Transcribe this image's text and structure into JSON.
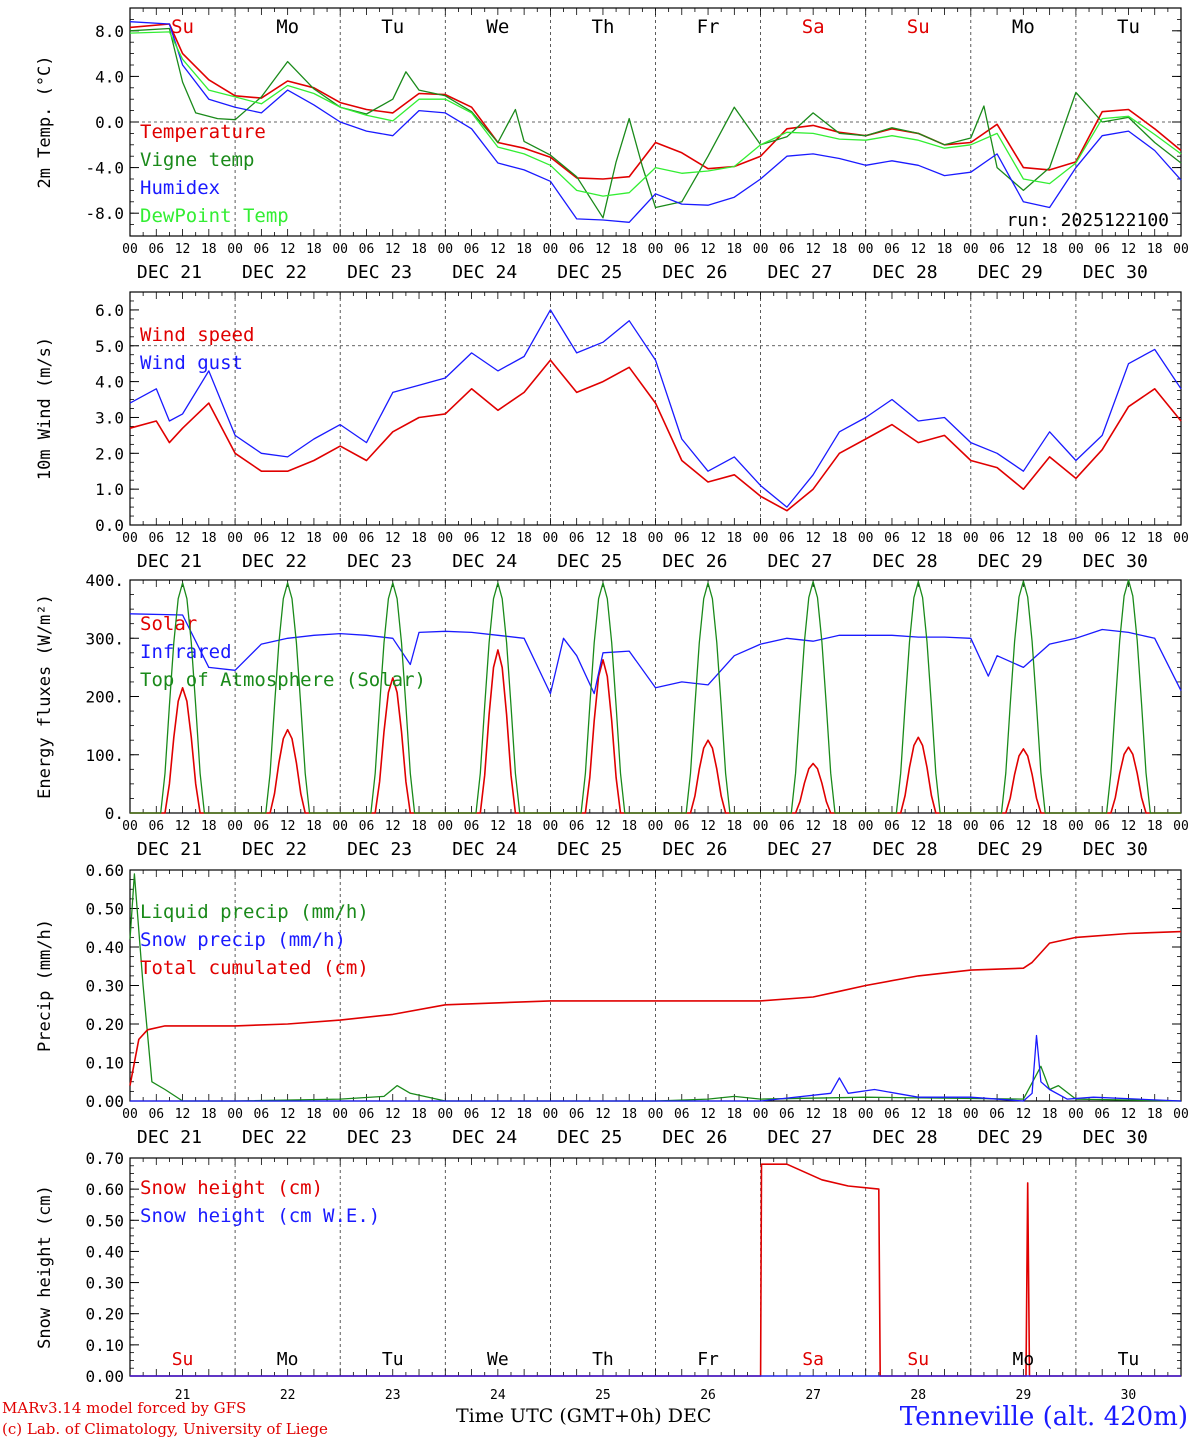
{
  "run_label": "run: 2025122100",
  "weekday_labels": [
    "Su",
    "Mo",
    "Tu",
    "We",
    "Th",
    "Fr",
    "Sa",
    "Su",
    "Mo",
    "Tu"
  ],
  "weekend_flags": [
    true,
    false,
    false,
    false,
    false,
    false,
    true,
    true,
    false,
    false
  ],
  "date_labels": [
    "DEC 21",
    "DEC 22",
    "DEC 23",
    "DEC 24",
    "DEC 25",
    "DEC 26",
    "DEC 27",
    "DEC 28",
    "DEC 29",
    "DEC 30"
  ],
  "hour_ticks": [
    "00",
    "06",
    "12",
    "18"
  ],
  "final_hour_tick": "00",
  "day_numbers": [
    "21",
    "22",
    "23",
    "24",
    "25",
    "26",
    "27",
    "28",
    "29",
    "30"
  ],
  "footer": {
    "model": "MARv3.14 model forced by GFS",
    "lab": "(c) Lab. of Climatology, University of Liege",
    "time_axis": "Time UTC (GMT+0h) DEC",
    "station": "Tenneville (alt. 420m)"
  },
  "colors": {
    "red": "#e00000",
    "green": "#1a8a1a",
    "blue": "#1a1aff",
    "lightgreen": "#33ee33",
    "black": "#000000"
  },
  "chart_data": [
    {
      "type": "line",
      "ylabel": "2m Temp. (°C)",
      "ylim": [
        -10,
        10
      ],
      "yticks": [
        -8,
        -4,
        0,
        4,
        8
      ],
      "ytick_labels": [
        "-8.0",
        "-4.0",
        "0.0",
        "4.0",
        "8.0"
      ],
      "reference_line": 0,
      "x_unit": "hours since DEC 21 00 UTC",
      "series": [
        {
          "name": "Temperature",
          "color": "red",
          "x": [
            0,
            9,
            12,
            18,
            24,
            30,
            36,
            42,
            48,
            54,
            60,
            66,
            72,
            78,
            84,
            90,
            96,
            102,
            108,
            114,
            120,
            126,
            132,
            138,
            144,
            150,
            156,
            162,
            168,
            174,
            180,
            186,
            192,
            198,
            204,
            210,
            216,
            222,
            228,
            234,
            240
          ],
          "values": [
            8.3,
            8.6,
            6.0,
            3.7,
            2.3,
            2.1,
            3.6,
            3.0,
            1.7,
            1.1,
            0.8,
            2.5,
            2.4,
            1.3,
            -1.8,
            -2.3,
            -3.1,
            -4.9,
            -5.0,
            -4.8,
            -1.8,
            -2.7,
            -4.1,
            -3.9,
            -3.0,
            -0.6,
            -0.3,
            -0.9,
            -1.2,
            -0.6,
            -1.0,
            -2.0,
            -1.8,
            -0.2,
            -4.0,
            -4.2,
            -3.5,
            0.9,
            1.1,
            -0.6,
            -2.5
          ]
        },
        {
          "name": "Vigne temp",
          "color": "green",
          "x": [
            0,
            9,
            12,
            15,
            20,
            24,
            30,
            36,
            42,
            48,
            54,
            60,
            63,
            66,
            72,
            78,
            84,
            88,
            90,
            96,
            102,
            108,
            111,
            114,
            117,
            120,
            126,
            132,
            138,
            144,
            150,
            156,
            162,
            168,
            174,
            180,
            186,
            192,
            195,
            198,
            204,
            210,
            216,
            222,
            228,
            234,
            240
          ],
          "values": [
            8.0,
            8.2,
            3.5,
            0.8,
            0.3,
            0.2,
            2.2,
            5.3,
            2.9,
            1.3,
            0.7,
            2.0,
            4.4,
            2.8,
            2.3,
            0.9,
            -1.8,
            1.1,
            -1.7,
            -2.9,
            -4.8,
            -8.4,
            -3.5,
            0.3,
            -3.9,
            -7.5,
            -7.0,
            -3.0,
            1.3,
            -2.0,
            -1.3,
            0.8,
            -1.0,
            -1.2,
            -0.5,
            -1.0,
            -2.0,
            -1.4,
            1.4,
            -4.0,
            -6.0,
            -4.0,
            2.6,
            0.0,
            0.4,
            -1.8,
            -3.6
          ]
        },
        {
          "name": "Humidex",
          "color": "blue",
          "x": [
            0,
            9,
            12,
            18,
            24,
            30,
            36,
            42,
            48,
            54,
            60,
            66,
            72,
            78,
            84,
            90,
            96,
            102,
            108,
            114,
            120,
            126,
            132,
            138,
            144,
            150,
            156,
            162,
            168,
            174,
            180,
            186,
            192,
            198,
            204,
            210,
            216,
            222,
            228,
            234,
            240
          ],
          "values": [
            8.8,
            8.6,
            5.0,
            2.0,
            1.3,
            0.8,
            2.8,
            1.5,
            0.0,
            -0.8,
            -1.2,
            1.0,
            0.8,
            -0.6,
            -3.6,
            -4.2,
            -5.2,
            -8.5,
            -8.6,
            -8.8,
            -6.3,
            -7.2,
            -7.3,
            -6.6,
            -5.0,
            -3.0,
            -2.8,
            -3.2,
            -3.8,
            -3.4,
            -3.8,
            -4.7,
            -4.4,
            -2.8,
            -7.0,
            -7.5,
            -4.0,
            -1.2,
            -0.8,
            -2.5,
            -5.1
          ]
        },
        {
          "name": "DewPoint Temp",
          "color": "lightgreen",
          "x": [
            0,
            9,
            12,
            18,
            24,
            30,
            36,
            42,
            48,
            54,
            60,
            66,
            72,
            78,
            84,
            90,
            96,
            102,
            108,
            114,
            120,
            126,
            132,
            138,
            144,
            150,
            156,
            162,
            168,
            174,
            180,
            186,
            192,
            198,
            204,
            210,
            216,
            222,
            228,
            234,
            240
          ],
          "values": [
            7.8,
            7.9,
            5.5,
            2.8,
            2.2,
            1.6,
            3.2,
            2.5,
            1.3,
            0.6,
            0.1,
            2.0,
            2.0,
            0.8,
            -2.2,
            -2.8,
            -3.8,
            -6.0,
            -6.5,
            -6.2,
            -4.0,
            -4.5,
            -4.3,
            -3.9,
            -2.0,
            -0.9,
            -1.0,
            -1.5,
            -1.6,
            -1.2,
            -1.6,
            -2.3,
            -2.0,
            -1.0,
            -5.0,
            -5.4,
            -3.6,
            0.3,
            0.5,
            -1.1,
            -2.8
          ]
        }
      ]
    },
    {
      "type": "line",
      "ylabel": "10m Wind (m/s)",
      "ylim": [
        0,
        6.5
      ],
      "yticks": [
        0,
        1,
        2,
        3,
        4,
        5,
        6
      ],
      "ytick_labels": [
        "0.0",
        "1.0",
        "2.0",
        "3.0",
        "4.0",
        "5.0",
        "6.0"
      ],
      "reference_line": 5,
      "x_unit": "hours since DEC 21 00 UTC",
      "series": [
        {
          "name": "Wind speed",
          "color": "red",
          "x": [
            0,
            6,
            9,
            12,
            18,
            24,
            30,
            36,
            42,
            48,
            54,
            60,
            66,
            72,
            78,
            84,
            90,
            96,
            102,
            108,
            114,
            120,
            126,
            132,
            138,
            144,
            150,
            156,
            162,
            168,
            174,
            180,
            186,
            192,
            198,
            204,
            210,
            216,
            222,
            228,
            234,
            240
          ],
          "values": [
            2.7,
            2.9,
            2.3,
            2.7,
            3.4,
            2.0,
            1.5,
            1.5,
            1.8,
            2.2,
            1.8,
            2.6,
            3.0,
            3.1,
            3.8,
            3.2,
            3.7,
            4.6,
            3.7,
            4.0,
            4.4,
            3.4,
            1.8,
            1.2,
            1.4,
            0.8,
            0.4,
            1.0,
            2.0,
            2.4,
            2.8,
            2.3,
            2.5,
            1.8,
            1.6,
            1.0,
            1.9,
            1.3,
            2.1,
            3.3,
            3.8,
            2.9
          ]
        },
        {
          "name": "Wind gust",
          "color": "blue",
          "x": [
            0,
            6,
            9,
            12,
            18,
            24,
            30,
            36,
            42,
            48,
            54,
            60,
            66,
            72,
            78,
            84,
            90,
            96,
            102,
            108,
            114,
            120,
            126,
            132,
            138,
            144,
            150,
            156,
            162,
            168,
            174,
            180,
            186,
            192,
            198,
            204,
            210,
            216,
            222,
            228,
            234,
            240
          ],
          "values": [
            3.4,
            3.8,
            2.9,
            3.1,
            4.3,
            2.5,
            2.0,
            1.9,
            2.4,
            2.8,
            2.3,
            3.7,
            3.9,
            4.1,
            4.8,
            4.3,
            4.7,
            6.0,
            4.8,
            5.1,
            5.7,
            4.6,
            2.4,
            1.5,
            1.9,
            1.1,
            0.5,
            1.4,
            2.6,
            3.0,
            3.5,
            2.9,
            3.0,
            2.3,
            2.0,
            1.5,
            2.6,
            1.8,
            2.5,
            4.5,
            4.9,
            3.8
          ]
        }
      ]
    },
    {
      "type": "line",
      "ylabel": "Energy fluxes (W/m²)",
      "ylim": [
        0,
        400
      ],
      "yticks": [
        0,
        100,
        200,
        300,
        400
      ],
      "ytick_labels": [
        "0.",
        "100.",
        "200.",
        "300.",
        "400."
      ],
      "x_unit": "hours since DEC 21 00 UTC",
      "series": [
        {
          "name": "Solar",
          "color": "red",
          "daily_peak": [
            215,
            143,
            232,
            280,
            263,
            125,
            85,
            130,
            110,
            113
          ]
        },
        {
          "name": "Infrared",
          "color": "blue",
          "x": [
            0,
            12,
            18,
            24,
            30,
            36,
            42,
            48,
            54,
            60,
            64,
            66,
            72,
            78,
            84,
            90,
            96,
            99,
            102,
            106,
            108,
            114,
            120,
            126,
            132,
            138,
            144,
            150,
            156,
            162,
            168,
            174,
            180,
            186,
            192,
            196,
            198,
            204,
            210,
            216,
            222,
            228,
            234,
            240
          ],
          "values": [
            342,
            340,
            250,
            245,
            290,
            300,
            305,
            308,
            305,
            300,
            255,
            310,
            312,
            310,
            305,
            300,
            205,
            300,
            270,
            205,
            275,
            278,
            215,
            225,
            220,
            270,
            290,
            300,
            295,
            305,
            305,
            305,
            302,
            302,
            300,
            235,
            270,
            250,
            290,
            300,
            315,
            310,
            300,
            210
          ]
        },
        {
          "name": "Top of Atmosphere (Solar)",
          "color": "green",
          "daily_peak": [
            395,
            395,
            395,
            395,
            395,
            395,
            397,
            397,
            398,
            400
          ]
        }
      ]
    },
    {
      "type": "line",
      "ylabel": "Precip (mm/h)",
      "ylim": [
        0,
        0.6
      ],
      "yticks": [
        0,
        0.1,
        0.2,
        0.3,
        0.4,
        0.5,
        0.6
      ],
      "ytick_labels": [
        "0.00",
        "0.10",
        "0.20",
        "0.30",
        "0.40",
        "0.50",
        "0.60"
      ],
      "x_unit": "hours since DEC 21 00 UTC",
      "series": [
        {
          "name": "Liquid precip (mm/h)",
          "color": "green",
          "x": [
            0,
            1,
            3,
            5,
            8,
            12,
            24,
            48,
            58,
            61,
            64,
            72,
            84,
            120,
            132,
            138,
            144,
            168,
            204,
            208,
            210,
            212,
            216,
            240
          ],
          "values": [
            0.42,
            0.59,
            0.3,
            0.05,
            0.03,
            0.0,
            0.0,
            0.005,
            0.012,
            0.04,
            0.02,
            0.0,
            0.0,
            0.0,
            0.005,
            0.012,
            0.005,
            0.01,
            0.005,
            0.09,
            0.03,
            0.04,
            0.005,
            0.0
          ]
        },
        {
          "name": "Snow precip (mm/h)",
          "color": "blue",
          "x": [
            0,
            144,
            160,
            162,
            164,
            170,
            180,
            192,
            204,
            206,
            207,
            208,
            210,
            214,
            220,
            240
          ],
          "values": [
            0.0,
            0.0,
            0.02,
            0.06,
            0.02,
            0.03,
            0.01,
            0.01,
            0.0,
            0.02,
            0.17,
            0.05,
            0.03,
            0.005,
            0.01,
            0.0
          ]
        },
        {
          "name": "Total cumulated (cm)",
          "color": "red",
          "x": [
            0,
            2,
            4,
            8,
            24,
            36,
            48,
            60,
            72,
            96,
            120,
            144,
            156,
            162,
            168,
            180,
            192,
            204,
            206,
            210,
            216,
            228,
            240
          ],
          "values": [
            0.04,
            0.16,
            0.185,
            0.195,
            0.195,
            0.2,
            0.21,
            0.225,
            0.25,
            0.26,
            0.26,
            0.26,
            0.27,
            0.285,
            0.3,
            0.325,
            0.34,
            0.345,
            0.36,
            0.41,
            0.425,
            0.435,
            0.44
          ]
        }
      ]
    },
    {
      "type": "line",
      "ylabel": "Snow height (cm)",
      "ylim": [
        0,
        0.7
      ],
      "yticks": [
        0,
        0.1,
        0.2,
        0.3,
        0.4,
        0.5,
        0.6,
        0.7
      ],
      "ytick_labels": [
        "0.00",
        "0.10",
        "0.20",
        "0.30",
        "0.40",
        "0.50",
        "0.60",
        "0.70"
      ],
      "x_unit": "hours since DEC 21 00 UTC",
      "series": [
        {
          "name": "Snow height (cm)",
          "color": "red",
          "x": [
            0,
            144,
            144.2,
            150,
            158,
            164,
            171,
            171.3,
            204,
            204.6,
            205,
            205.4,
            240
          ],
          "values": [
            0,
            0,
            0.68,
            0.68,
            0.63,
            0.61,
            0.6,
            0,
            0,
            0,
            0.62,
            0,
            0
          ]
        },
        {
          "name": "Snow height (cm W.E.)",
          "color": "blue",
          "x": [
            0,
            240
          ],
          "values": [
            0,
            0
          ]
        }
      ]
    }
  ]
}
